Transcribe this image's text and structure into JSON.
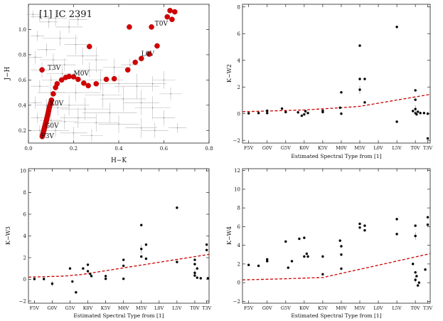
{
  "chart_data": [
    {
      "type": "scatter",
      "title": "[1] IC 2391",
      "xlabel": "H−K",
      "ylabel": "J−H",
      "xlim": [
        0,
        0.8
      ],
      "ylim": [
        0.1,
        1.2
      ],
      "xticks": [
        0,
        0.2,
        0.4,
        0.6,
        0.8
      ],
      "xtick_labels": [
        "0.0",
        "0.2",
        "0.4",
        "0.6",
        "0.8"
      ],
      "yticks": [
        0.2,
        0.4,
        0.6,
        0.8,
        1.0
      ],
      "ytick_labels": [
        "0.2",
        "0.4",
        "0.6",
        "0.8",
        "1.0"
      ],
      "grey_points": [
        {
          "x": 0.02,
          "y": 1.12,
          "ex": 0.03,
          "ey": 0.03
        },
        {
          "x": 0.05,
          "y": 1.1,
          "ex": 0.04,
          "ey": 0.04
        },
        {
          "x": 0.09,
          "y": 1.06,
          "ex": 0.04,
          "ey": 0.05
        },
        {
          "x": 0.12,
          "y": 1.09,
          "ex": 0.05,
          "ey": 0.06
        },
        {
          "x": 0.18,
          "y": 1.02,
          "ex": 0.06,
          "ey": 0.05
        },
        {
          "x": 0.22,
          "y": 1.08,
          "ex": 0.04,
          "ey": 0.05
        },
        {
          "x": 0.04,
          "y": 0.95,
          "ex": 0.03,
          "ey": 0.04
        },
        {
          "x": 0.14,
          "y": 0.93,
          "ex": 0.08,
          "ey": 0.06
        },
        {
          "x": 0.21,
          "y": 0.88,
          "ex": 0.05,
          "ey": 0.08
        },
        {
          "x": 0.08,
          "y": 0.84,
          "ex": 0.04,
          "ey": 0.05
        },
        {
          "x": 0.03,
          "y": 0.78,
          "ex": 0.03,
          "ey": 0.05
        },
        {
          "x": 0.11,
          "y": 0.76,
          "ex": 0.06,
          "ey": 0.05
        },
        {
          "x": 0.24,
          "y": 0.79,
          "ex": 0.07,
          "ey": 0.07
        },
        {
          "x": 0.3,
          "y": 0.76,
          "ex": 0.05,
          "ey": 0.1
        },
        {
          "x": 0.45,
          "y": 0.72,
          "ex": 0.04,
          "ey": 0.05
        },
        {
          "x": 0.06,
          "y": 0.68,
          "ex": 0.05,
          "ey": 0.06
        },
        {
          "x": 0.15,
          "y": 0.65,
          "ex": 0.07,
          "ey": 0.06
        },
        {
          "x": 0.32,
          "y": 0.6,
          "ex": 0.1,
          "ey": 0.08
        },
        {
          "x": 0.4,
          "y": 0.57,
          "ex": 0.09,
          "ey": 0.07
        },
        {
          "x": 0.48,
          "y": 0.55,
          "ex": 0.1,
          "ey": 0.1
        },
        {
          "x": 0.55,
          "y": 0.57,
          "ex": 0.06,
          "ey": 0.06
        },
        {
          "x": 0.6,
          "y": 0.6,
          "ex": 0.05,
          "ey": 0.07
        },
        {
          "x": 0.63,
          "y": 0.49,
          "ex": 0.05,
          "ey": 0.05
        },
        {
          "x": 0.05,
          "y": 0.55,
          "ex": 0.04,
          "ey": 0.05
        },
        {
          "x": 0.1,
          "y": 0.5,
          "ex": 0.06,
          "ey": 0.06
        },
        {
          "x": 0.21,
          "y": 0.5,
          "ex": 0.11,
          "ey": 0.07
        },
        {
          "x": 0.33,
          "y": 0.48,
          "ex": 0.08,
          "ey": 0.1
        },
        {
          "x": 0.42,
          "y": 0.45,
          "ex": 0.1,
          "ey": 0.1
        },
        {
          "x": 0.5,
          "y": 0.42,
          "ex": 0.08,
          "ey": 0.1
        },
        {
          "x": 0.55,
          "y": 0.38,
          "ex": 0.08,
          "ey": 0.09
        },
        {
          "x": 0.03,
          "y": 0.42,
          "ex": 0.03,
          "ey": 0.05
        },
        {
          "x": 0.08,
          "y": 0.4,
          "ex": 0.05,
          "ey": 0.05
        },
        {
          "x": 0.13,
          "y": 0.38,
          "ex": 0.05,
          "ey": 0.06
        },
        {
          "x": 0.18,
          "y": 0.4,
          "ex": 0.09,
          "ey": 0.08
        },
        {
          "x": 0.25,
          "y": 0.37,
          "ex": 0.11,
          "ey": 0.09
        },
        {
          "x": 0.36,
          "y": 0.34,
          "ex": 0.12,
          "ey": 0.08
        },
        {
          "x": 0.6,
          "y": 0.3,
          "ex": 0.05,
          "ey": 0.06
        },
        {
          "x": 0.66,
          "y": 0.22,
          "ex": 0.04,
          "ey": 0.04
        },
        {
          "x": 0.04,
          "y": 0.3,
          "ex": 0.03,
          "ey": 0.04
        },
        {
          "x": 0.1,
          "y": 0.28,
          "ex": 0.05,
          "ey": 0.05
        },
        {
          "x": 0.16,
          "y": 0.27,
          "ex": 0.06,
          "ey": 0.06
        },
        {
          "x": 0.22,
          "y": 0.3,
          "ex": 0.08,
          "ey": 0.08
        },
        {
          "x": 0.3,
          "y": 0.26,
          "ex": 0.1,
          "ey": 0.07
        },
        {
          "x": 0.4,
          "y": 0.25,
          "ex": 0.09,
          "ey": 0.07
        },
        {
          "x": 0.5,
          "y": 0.22,
          "ex": 0.07,
          "ey": 0.08
        },
        {
          "x": 0.56,
          "y": 0.2,
          "ex": 0.06,
          "ey": 0.06
        },
        {
          "x": 0.05,
          "y": 0.2,
          "ex": 0.04,
          "ey": 0.04
        },
        {
          "x": 0.12,
          "y": 0.2,
          "ex": 0.06,
          "ey": 0.05
        },
        {
          "x": 0.2,
          "y": 0.18,
          "ex": 0.06,
          "ey": 0.05
        },
        {
          "x": 0.28,
          "y": 0.16,
          "ex": 0.05,
          "ey": 0.05
        },
        {
          "x": 0.1,
          "y": 0.6,
          "ex": 0.04,
          "ey": 0.04
        },
        {
          "x": 0.16,
          "y": 0.72,
          "ex": 0.05,
          "ey": 0.05
        },
        {
          "x": 0.27,
          "y": 0.68,
          "ex": 0.06,
          "ey": 0.06
        },
        {
          "x": 0.38,
          "y": 0.7,
          "ex": 0.05,
          "ey": 0.07
        }
      ],
      "red_points": [
        {
          "x": 0.061,
          "y": 0.152
        },
        {
          "x": 0.063,
          "y": 0.165
        },
        {
          "x": 0.065,
          "y": 0.178
        },
        {
          "x": 0.067,
          "y": 0.192
        },
        {
          "x": 0.069,
          "y": 0.206
        },
        {
          "x": 0.071,
          "y": 0.22
        },
        {
          "x": 0.073,
          "y": 0.234
        },
        {
          "x": 0.075,
          "y": 0.248
        },
        {
          "x": 0.077,
          "y": 0.262
        },
        {
          "x": 0.079,
          "y": 0.276
        },
        {
          "x": 0.081,
          "y": 0.29
        },
        {
          "x": 0.083,
          "y": 0.305
        },
        {
          "x": 0.085,
          "y": 0.32
        },
        {
          "x": 0.087,
          "y": 0.336
        },
        {
          "x": 0.089,
          "y": 0.352
        },
        {
          "x": 0.091,
          "y": 0.368
        },
        {
          "x": 0.093,
          "y": 0.385
        },
        {
          "x": 0.096,
          "y": 0.402
        },
        {
          "x": 0.099,
          "y": 0.42
        },
        {
          "x": 0.102,
          "y": 0.44
        },
        {
          "x": 0.11,
          "y": 0.49
        },
        {
          "x": 0.12,
          "y": 0.54
        },
        {
          "x": 0.127,
          "y": 0.57
        },
        {
          "x": 0.147,
          "y": 0.6
        },
        {
          "x": 0.165,
          "y": 0.62
        },
        {
          "x": 0.18,
          "y": 0.628
        },
        {
          "x": 0.2,
          "y": 0.625
        },
        {
          "x": 0.22,
          "y": 0.605
        },
        {
          "x": 0.245,
          "y": 0.575
        },
        {
          "x": 0.265,
          "y": 0.555
        },
        {
          "x": 0.3,
          "y": 0.57
        },
        {
          "x": 0.345,
          "y": 0.605
        },
        {
          "x": 0.38,
          "y": 0.61
        },
        {
          "x": 0.44,
          "y": 0.68
        },
        {
          "x": 0.473,
          "y": 0.74
        },
        {
          "x": 0.5,
          "y": 0.77
        },
        {
          "x": 0.535,
          "y": 0.805
        },
        {
          "x": 0.57,
          "y": 0.87
        },
        {
          "x": 0.27,
          "y": 0.865
        },
        {
          "x": 0.06,
          "y": 0.68
        },
        {
          "x": 0.447,
          "y": 1.02
        },
        {
          "x": 0.545,
          "y": 1.02
        },
        {
          "x": 0.615,
          "y": 1.1
        },
        {
          "x": 0.627,
          "y": 1.15
        },
        {
          "x": 0.636,
          "y": 1.08
        },
        {
          "x": 0.648,
          "y": 1.14
        }
      ],
      "annotations": [
        {
          "text": "T0V",
          "x": 0.56,
          "y": 1.03
        },
        {
          "text": "L0V",
          "x": 0.5,
          "y": 0.79
        },
        {
          "text": "M0V",
          "x": 0.2,
          "y": 0.635
        },
        {
          "text": "T3V",
          "x": 0.085,
          "y": 0.68
        },
        {
          "text": "K0V",
          "x": 0.095,
          "y": 0.4
        },
        {
          "text": "G0V",
          "x": 0.073,
          "y": 0.22
        },
        {
          "text": "F3V",
          "x": 0.055,
          "y": 0.14
        }
      ]
    },
    {
      "type": "scatter",
      "xlabel": "Estimated Spectral Type from [1]",
      "ylabel": "K−W2",
      "xlim": [
        0,
        15.2
      ],
      "ylim": [
        -2.2,
        8.2
      ],
      "categories": [
        "F5V",
        "G0V",
        "G5V",
        "K0V",
        "K5V",
        "M0V",
        "M5V",
        "L0V",
        "L5V",
        "T0V",
        "T3V"
      ],
      "category_x": [
        0.5,
        2,
        3.5,
        5,
        6.5,
        8,
        9.5,
        11,
        12.5,
        14,
        15
      ],
      "yticks": [
        -2,
        0,
        2,
        4,
        6,
        8
      ],
      "ytick_labels": [
        "−2",
        "0",
        "2",
        "4",
        "6",
        "8"
      ],
      "points": [
        {
          "x": 0.5,
          "y": 0.03
        },
        {
          "x": 1.3,
          "y": 0.05
        },
        {
          "x": 2.0,
          "y": 0.05
        },
        {
          "x": 2.0,
          "y": 0.22
        },
        {
          "x": 3.2,
          "y": 0.38
        },
        {
          "x": 3.5,
          "y": 0.12
        },
        {
          "x": 4.5,
          "y": 0.1
        },
        {
          "x": 4.8,
          "y": -0.15
        },
        {
          "x": 5.0,
          "y": -0.05
        },
        {
          "x": 5.1,
          "y": 0.18
        },
        {
          "x": 5.3,
          "y": 0.05
        },
        {
          "x": 6.5,
          "y": 0.12
        },
        {
          "x": 6.5,
          "y": 0.22
        },
        {
          "x": 7.9,
          "y": 0.45
        },
        {
          "x": 8.0,
          "y": 0.0
        },
        {
          "x": 8.0,
          "y": 1.6
        },
        {
          "x": 9.5,
          "y": 5.1
        },
        {
          "x": 9.5,
          "y": 2.6
        },
        {
          "x": 9.5,
          "y": 1.8,
          "ey": 0.3
        },
        {
          "x": 9.9,
          "y": 2.6
        },
        {
          "x": 9.9,
          "y": 0.85
        },
        {
          "x": 12.5,
          "y": 6.5
        },
        {
          "x": 12.5,
          "y": -0.6
        },
        {
          "x": 14.0,
          "y": 1.75
        },
        {
          "x": 14.0,
          "y": 1.05
        },
        {
          "x": 13.8,
          "y": 0.2
        },
        {
          "x": 14.0,
          "y": 0.05
        },
        {
          "x": 14.2,
          "y": 0.15
        },
        {
          "x": 14.4,
          "y": 0.05
        },
        {
          "x": 14.0,
          "y": 0.35,
          "ey": 0.3
        },
        {
          "x": 14.7,
          "y": 0.05
        },
        {
          "x": 15.0,
          "y": 0.0
        },
        {
          "x": 15.0,
          "y": -1.85
        },
        {
          "x": 14.1,
          "y": -0.05
        }
      ],
      "model_line": [
        {
          "x": 0,
          "y": 0.15
        },
        {
          "x": 2,
          "y": 0.2
        },
        {
          "x": 5,
          "y": 0.28
        },
        {
          "x": 8,
          "y": 0.45
        },
        {
          "x": 9.5,
          "y": 0.55
        },
        {
          "x": 15.2,
          "y": 1.45
        }
      ]
    },
    {
      "type": "scatter",
      "xlabel": "Estimated Spectral Type from [1]",
      "ylabel": "K−W3",
      "xlim": [
        0,
        15.2
      ],
      "ylim": [
        -2.2,
        10.2
      ],
      "categories": [
        "F5V",
        "G0V",
        "G5V",
        "K0V",
        "K5V",
        "M0V",
        "M5V",
        "L0V",
        "L5V",
        "T0V",
        "T3V"
      ],
      "category_x": [
        0.5,
        2,
        3.5,
        5,
        6.5,
        8,
        9.5,
        11,
        12.5,
        14,
        15
      ],
      "yticks": [
        -2,
        0,
        2,
        4,
        6,
        8,
        10
      ],
      "ytick_labels": [
        "−2",
        "0",
        "2",
        "4",
        "6",
        "8",
        "10"
      ],
      "points": [
        {
          "x": 0.5,
          "y": 0.03
        },
        {
          "x": 1.3,
          "y": 0.03
        },
        {
          "x": 2.0,
          "y": -0.4,
          "ey": 0.25
        },
        {
          "x": 3.5,
          "y": 1.0
        },
        {
          "x": 3.7,
          "y": -0.2
        },
        {
          "x": 4.0,
          "y": -1.2
        },
        {
          "x": 4.6,
          "y": 1.0
        },
        {
          "x": 5.0,
          "y": 1.35
        },
        {
          "x": 5.0,
          "y": 0.75
        },
        {
          "x": 5.2,
          "y": 0.5
        },
        {
          "x": 5.3,
          "y": 0.3
        },
        {
          "x": 6.5,
          "y": 0.3
        },
        {
          "x": 6.5,
          "y": 0.05
        },
        {
          "x": 8.0,
          "y": 1.8
        },
        {
          "x": 8.0,
          "y": 1.25
        },
        {
          "x": 8.0,
          "y": 0.05
        },
        {
          "x": 9.5,
          "y": 5.0
        },
        {
          "x": 9.5,
          "y": 2.8,
          "ey": 0.4
        },
        {
          "x": 9.5,
          "y": 2.1
        },
        {
          "x": 9.9,
          "y": 3.2
        },
        {
          "x": 9.9,
          "y": 1.9
        },
        {
          "x": 12.5,
          "y": 6.6
        },
        {
          "x": 12.5,
          "y": 1.6
        },
        {
          "x": 14.0,
          "y": 1.8
        },
        {
          "x": 14.0,
          "y": 1.4
        },
        {
          "x": 14.2,
          "y": 1.0
        },
        {
          "x": 14.0,
          "y": 0.6,
          "ey": 0.3
        },
        {
          "x": 14.0,
          "y": 0.35
        },
        {
          "x": 14.2,
          "y": 0.15
        },
        {
          "x": 14.5,
          "y": 0.1
        },
        {
          "x": 15.0,
          "y": 3.2
        },
        {
          "x": 15.0,
          "y": 2.7
        },
        {
          "x": 15.1,
          "y": 0.1
        }
      ],
      "model_line": [
        {
          "x": 0,
          "y": 0.2
        },
        {
          "x": 3,
          "y": 0.3
        },
        {
          "x": 4.5,
          "y": 0.45
        },
        {
          "x": 15.2,
          "y": 2.3
        }
      ]
    },
    {
      "type": "scatter",
      "xlabel": "Estimated Spectral Type from [1]",
      "ylabel": "K−W4",
      "xlim": [
        0,
        15.2
      ],
      "ylim": [
        -2.2,
        12.2
      ],
      "categories": [
        "F5V",
        "G0V",
        "G5V",
        "K0V",
        "K5V",
        "M0V",
        "M5V",
        "L0V",
        "L5V",
        "T0V",
        "T3V"
      ],
      "category_x": [
        0.5,
        2,
        3.5,
        5,
        6.5,
        8,
        9.5,
        11,
        12.5,
        14,
        15
      ],
      "yticks": [
        -2,
        0,
        2,
        4,
        6,
        8,
        10,
        12
      ],
      "ytick_labels": [
        "−2",
        "0",
        "2",
        "4",
        "6",
        "8",
        "10",
        "12"
      ],
      "points": [
        {
          "x": 0.5,
          "y": 1.9
        },
        {
          "x": 1.3,
          "y": 1.8
        },
        {
          "x": 2.0,
          "y": 2.5
        },
        {
          "x": 2.0,
          "y": 2.3
        },
        {
          "x": 3.5,
          "y": 4.4
        },
        {
          "x": 3.7,
          "y": 1.6
        },
        {
          "x": 4.0,
          "y": 2.3
        },
        {
          "x": 4.6,
          "y": 4.7
        },
        {
          "x": 5.0,
          "y": 4.8
        },
        {
          "x": 5.0,
          "y": 2.8
        },
        {
          "x": 5.2,
          "y": 3.1
        },
        {
          "x": 5.3,
          "y": 2.8
        },
        {
          "x": 6.5,
          "y": 2.8
        },
        {
          "x": 6.5,
          "y": 0.9
        },
        {
          "x": 7.9,
          "y": 4.5
        },
        {
          "x": 8.0,
          "y": 3.9
        },
        {
          "x": 8.0,
          "y": 3.0
        },
        {
          "x": 8.0,
          "y": 1.5
        },
        {
          "x": 9.5,
          "y": 6.3
        },
        {
          "x": 9.5,
          "y": 5.9
        },
        {
          "x": 9.9,
          "y": 6.1
        },
        {
          "x": 9.9,
          "y": 5.6
        },
        {
          "x": 12.5,
          "y": 6.8
        },
        {
          "x": 12.5,
          "y": 5.2
        },
        {
          "x": 14.0,
          "y": 6.1
        },
        {
          "x": 14.0,
          "y": 5.0,
          "ey": 0.4
        },
        {
          "x": 13.8,
          "y": 2.0
        },
        {
          "x": 14.0,
          "y": 1.1
        },
        {
          "x": 14.1,
          "y": 0.7
        },
        {
          "x": 14.0,
          "y": 0.3,
          "ey": 0.3
        },
        {
          "x": 14.3,
          "y": 0.0
        },
        {
          "x": 14.2,
          "y": -0.3
        },
        {
          "x": 14.8,
          "y": 1.4
        },
        {
          "x": 15.0,
          "y": 7.0
        },
        {
          "x": 15.0,
          "y": 6.2
        }
      ],
      "model_line": [
        {
          "x": 0,
          "y": 0.3
        },
        {
          "x": 3,
          "y": 0.4
        },
        {
          "x": 6.5,
          "y": 0.55
        },
        {
          "x": 15.2,
          "y": 3.1
        }
      ]
    }
  ]
}
